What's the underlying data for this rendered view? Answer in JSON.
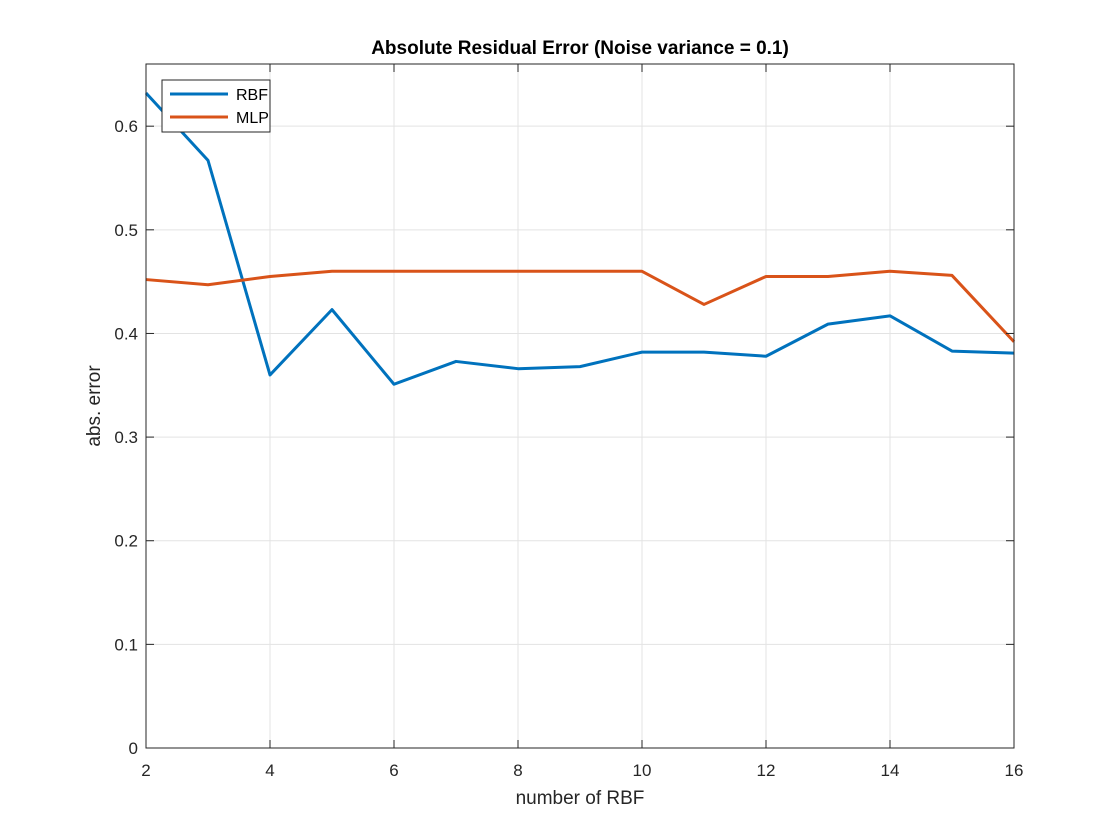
{
  "chart_data": {
    "type": "line",
    "title": "Absolute Residual Error (Noise variance = 0.1)",
    "xlabel": "number of RBF",
    "ylabel": "abs. error",
    "xlim": [
      2,
      16
    ],
    "ylim": [
      0,
      0.66
    ],
    "xticks": [
      2,
      4,
      6,
      8,
      10,
      12,
      14,
      16
    ],
    "xtick_labels": [
      "2",
      "4",
      "6",
      "8",
      "10",
      "12",
      "14",
      "16"
    ],
    "yticks": [
      0,
      0.1,
      0.2,
      0.3,
      0.4,
      0.5,
      0.6
    ],
    "ytick_labels": [
      "0",
      "0.1",
      "0.2",
      "0.3",
      "0.4",
      "0.5",
      "0.6"
    ],
    "grid": true,
    "legend_position": "top-left",
    "x": [
      2,
      3,
      4,
      5,
      6,
      7,
      8,
      9,
      10,
      11,
      12,
      13,
      14,
      15,
      16
    ],
    "series": [
      {
        "name": "RBF",
        "color": "#0072BD",
        "values": [
          0.632,
          0.567,
          0.36,
          0.423,
          0.351,
          0.373,
          0.366,
          0.368,
          0.382,
          0.382,
          0.378,
          0.409,
          0.417,
          0.383,
          0.381
        ]
      },
      {
        "name": "MLP",
        "color": "#D95319",
        "values": [
          0.452,
          0.447,
          0.455,
          0.46,
          0.46,
          0.46,
          0.46,
          0.46,
          0.46,
          0.428,
          0.455,
          0.455,
          0.46,
          0.456,
          0.392
        ]
      }
    ]
  }
}
